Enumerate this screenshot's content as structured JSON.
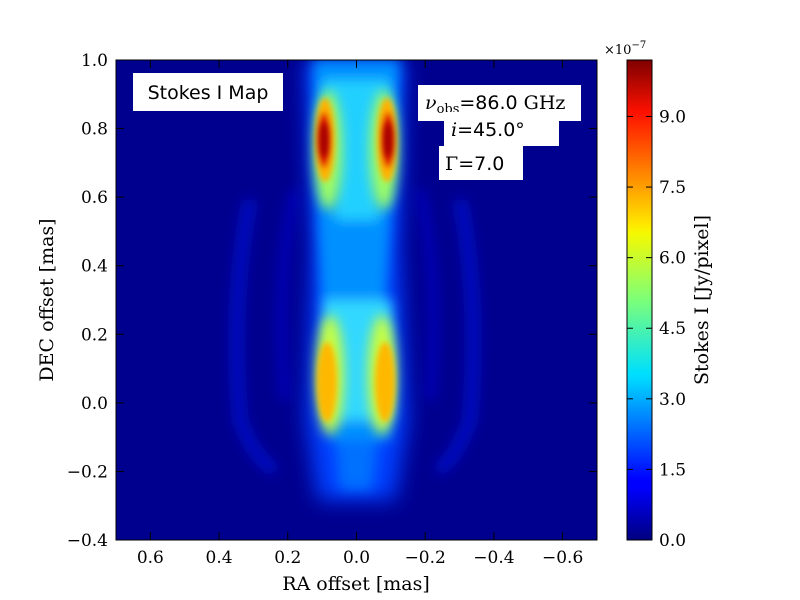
{
  "chart_data": {
    "type": "heatmap",
    "title": "Stokes I Map",
    "xlabel": "RA offset [mas]",
    "ylabel": "DEC offset [mas]",
    "xlim": [
      0.7,
      -0.7
    ],
    "ylim": [
      -0.4,
      1.0
    ],
    "x_ticks": [
      "0.6",
      "0.4",
      "0.2",
      "0.0",
      "−0.2",
      "−0.4",
      "−0.6"
    ],
    "x_tick_values": [
      0.6,
      0.4,
      0.2,
      0.0,
      -0.2,
      -0.4,
      -0.6
    ],
    "y_ticks": [
      "−0.4",
      "−0.2",
      "0.0",
      "0.2",
      "0.4",
      "0.6",
      "0.8",
      "1.0"
    ],
    "y_tick_values": [
      -0.4,
      -0.2,
      0.0,
      0.2,
      0.4,
      0.6,
      0.8,
      1.0
    ],
    "colorbar": {
      "label": "Stokes I [Jy/pixel]",
      "multiplier": "×10",
      "multiplier_exponent": "−7",
      "range": [
        0.0,
        10.2
      ],
      "ticks": [
        "0.0",
        "1.5",
        "3.0",
        "4.5",
        "6.0",
        "7.5",
        "9.0"
      ],
      "tick_values": [
        0.0,
        1.5,
        3.0,
        4.5,
        6.0,
        7.5,
        9.0
      ],
      "colormap": "jet"
    },
    "annotations": {
      "freq_symbol": "ν",
      "freq_sub": "obs",
      "freq_value": "=86.0",
      "freq_unit": "GHz",
      "incl_symbol": "i",
      "incl_value": "=45.0°",
      "gamma_symbol": "Γ",
      "gamma_value": "=7.0"
    },
    "features": [
      {
        "name": "upper-left-knot",
        "ra": 0.09,
        "dec": 0.76,
        "peak": 10.2
      },
      {
        "name": "upper-right-knot",
        "ra": -0.09,
        "dec": 0.76,
        "peak": 10.2
      },
      {
        "name": "lower-left-lobe",
        "ra": 0.09,
        "dec": 0.05,
        "peak": 7.0
      },
      {
        "name": "lower-right-lobe",
        "ra": -0.09,
        "dec": 0.05,
        "peak": 7.0
      }
    ]
  }
}
